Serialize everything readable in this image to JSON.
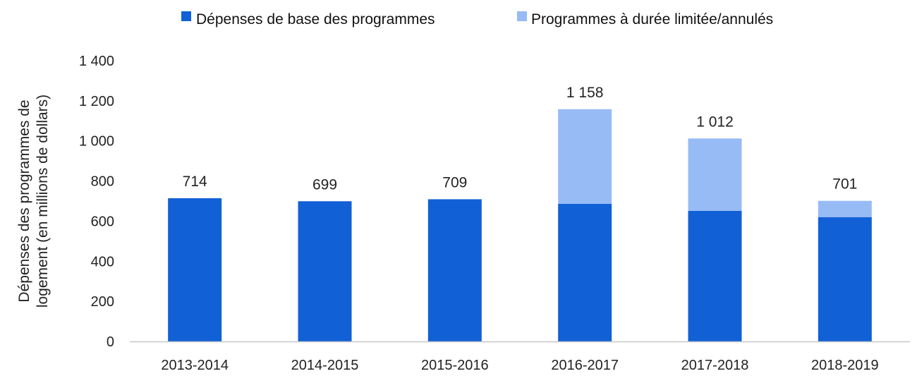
{
  "chart_data": {
    "type": "bar",
    "stacked": true,
    "categories": [
      "2013-2014",
      "2014-2015",
      "2015-2016",
      "2016-2017",
      "2017-2018",
      "2018-2019"
    ],
    "series": [
      {
        "name": "Dépenses de base des programmes",
        "color": "#1160d6",
        "values": [
          714,
          699,
          709,
          686,
          651,
          620
        ]
      },
      {
        "name": "Programmes à durée limitée/annulés",
        "color": "#97bbf5",
        "values": [
          0,
          0,
          0,
          472,
          361,
          81
        ]
      }
    ],
    "totals": [
      714,
      699,
      709,
      1158,
      1012,
      701
    ],
    "total_labels": [
      "714",
      "699",
      "709",
      "1 158",
      "1 012",
      "701"
    ],
    "ylabel_lines": [
      "Dépenses des programmes de",
      "logement (en millions de dollars)"
    ],
    "ylim": [
      0,
      1400
    ],
    "yticks": [
      0,
      200,
      400,
      600,
      800,
      1000,
      1200,
      1400
    ],
    "ytick_labels": [
      "0",
      "200",
      "400",
      "600",
      "800",
      "1 000",
      "1 200",
      "1 400"
    ],
    "legend_position": "top",
    "grid": false,
    "axis_color": "#c8c8c8"
  }
}
